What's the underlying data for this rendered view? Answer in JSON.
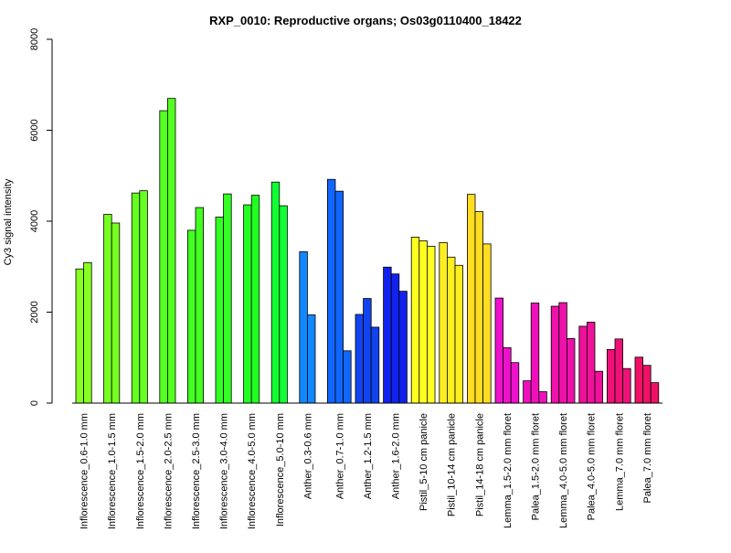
{
  "chart_data": {
    "type": "bar",
    "title": "RXP_0010: Reproductive organs; Os03g0110400_18422",
    "xlabel": "",
    "ylabel": "Cy3 signal intensity",
    "ylim": [
      0,
      8000
    ],
    "yticks": [
      "0",
      "2000",
      "4000",
      "6000",
      "8000"
    ],
    "grid": false,
    "legend": "none",
    "groups": [
      {
        "label": "Inflorescence_0.6-1.0 mm",
        "color": "#88ff22",
        "values": [
          2950,
          3090
        ]
      },
      {
        "label": "Inflorescence_1.0-1.5 mm",
        "color": "#77ff22",
        "values": [
          4150,
          3960
        ]
      },
      {
        "label": "Inflorescence_1.5-2.0 mm",
        "color": "#66ff22",
        "values": [
          4620,
          4670
        ]
      },
      {
        "label": "Inflorescence_2.0-2.5 mm",
        "color": "#55ff22",
        "values": [
          6430,
          6700
        ]
      },
      {
        "label": "Inflorescence_2.5-3.0 mm",
        "color": "#44ff22",
        "values": [
          3800,
          4300
        ]
      },
      {
        "label": "Inflorescence_3.0-4.0 mm",
        "color": "#33ff22",
        "values": [
          4090,
          4600
        ]
      },
      {
        "label": "Inflorescence_4.0-5.0 mm",
        "color": "#22ff22",
        "values": [
          4360,
          4570
        ]
      },
      {
        "label": "Inflorescence_5.0-10 mm",
        "color": "#11ff33",
        "values": [
          4860,
          4340
        ]
      },
      {
        "label": "Anther_0.3-0.6 mm",
        "color": "#1188ff",
        "values": [
          3330,
          1940
        ]
      },
      {
        "label": "Anther_0.7-1.0 mm",
        "color": "#1166ff",
        "values": [
          4920,
          4660,
          1150
        ]
      },
      {
        "label": "Anther_1.2-1.5 mm",
        "color": "#1144ee",
        "values": [
          1950,
          2300,
          1670
        ]
      },
      {
        "label": "Anther_1.6-2.0 mm",
        "color": "#1122ee",
        "values": [
          2990,
          2840,
          2460
        ]
      },
      {
        "label": "Pistil_5-10 cm panicle",
        "color": "#ffff22",
        "values": [
          3650,
          3570,
          3450
        ]
      },
      {
        "label": "Pistil_10-14 cm panicle",
        "color": "#ffee22",
        "values": [
          3530,
          3210,
          3030
        ]
      },
      {
        "label": "Pistil_14-18 cm panicle",
        "color": "#ffdd22",
        "values": [
          4590,
          4210,
          3500
        ]
      },
      {
        "label": "Lemma_1.5-2.0 mm floret",
        "color": "#ee11cc",
        "values": [
          2310,
          1220,
          890
        ]
      },
      {
        "label": "Palea_1.5-2.0 mm floret",
        "color": "#ee11bb",
        "values": [
          490,
          2200,
          250
        ]
      },
      {
        "label": "Lemma_4.0-5.0 mm floret",
        "color": "#ee11aa",
        "values": [
          2130,
          2210,
          1420
        ]
      },
      {
        "label": "Palea_4.0-5.0 mm floret",
        "color": "#ee1199",
        "values": [
          1690,
          1780,
          700
        ]
      },
      {
        "label": "Lemma_7.0 mm floret",
        "color": "#ee1177",
        "values": [
          1180,
          1410,
          760
        ]
      },
      {
        "label": "Palea_7.0 mm floret",
        "color": "#ee1166",
        "values": [
          1010,
          830,
          450
        ]
      }
    ]
  }
}
